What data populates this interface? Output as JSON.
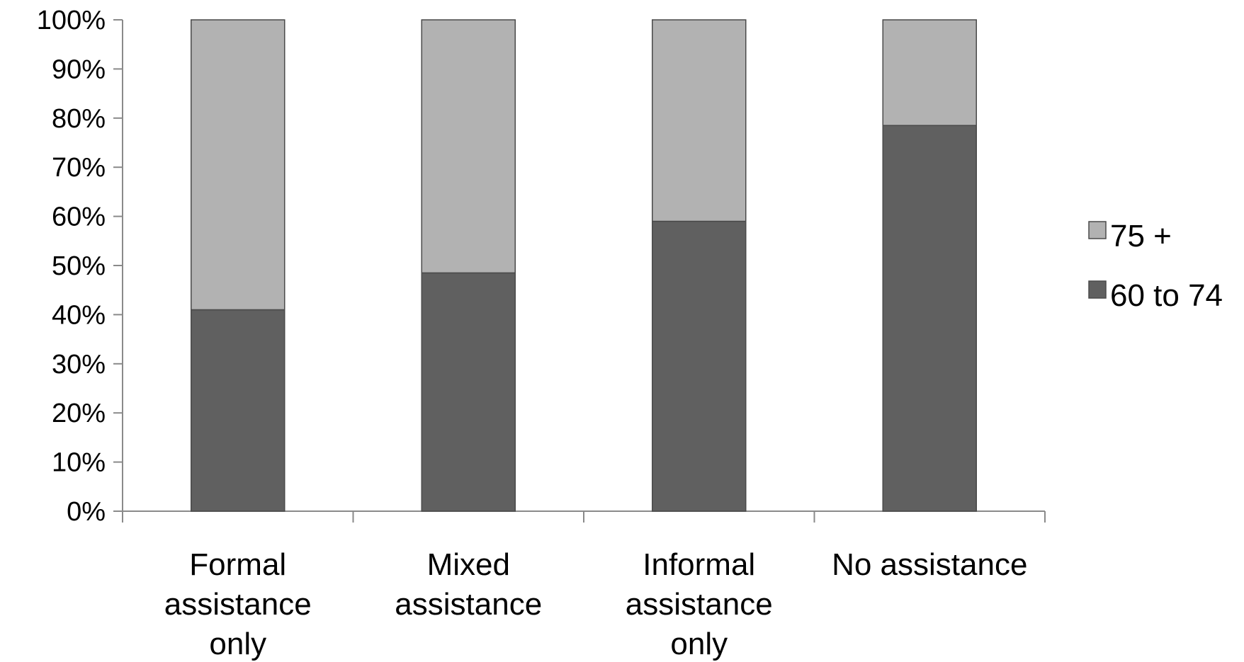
{
  "chart_data": {
    "type": "bar",
    "stacked": "percent",
    "title": "",
    "xlabel": "",
    "ylabel": "",
    "ylim": [
      0,
      100
    ],
    "y_ticks": [
      "0%",
      "10%",
      "20%",
      "30%",
      "40%",
      "50%",
      "60%",
      "70%",
      "80%",
      "90%",
      "100%"
    ],
    "categories": [
      [
        "Formal",
        "assistance",
        "only"
      ],
      [
        "Mixed",
        "assistance"
      ],
      [
        "Informal",
        "assistance",
        "only"
      ],
      [
        "No assistance"
      ]
    ],
    "series": [
      {
        "name": "60 to 74",
        "values": [
          41,
          48.5,
          59,
          78.5
        ],
        "color": "#606060"
      },
      {
        "name": "75 +",
        "values": [
          59,
          51.5,
          41,
          21.5
        ],
        "color": "#b2b2b2"
      }
    ],
    "legend": {
      "position": "right",
      "items": [
        "75 +",
        "60 to 74"
      ]
    },
    "grid": false
  }
}
